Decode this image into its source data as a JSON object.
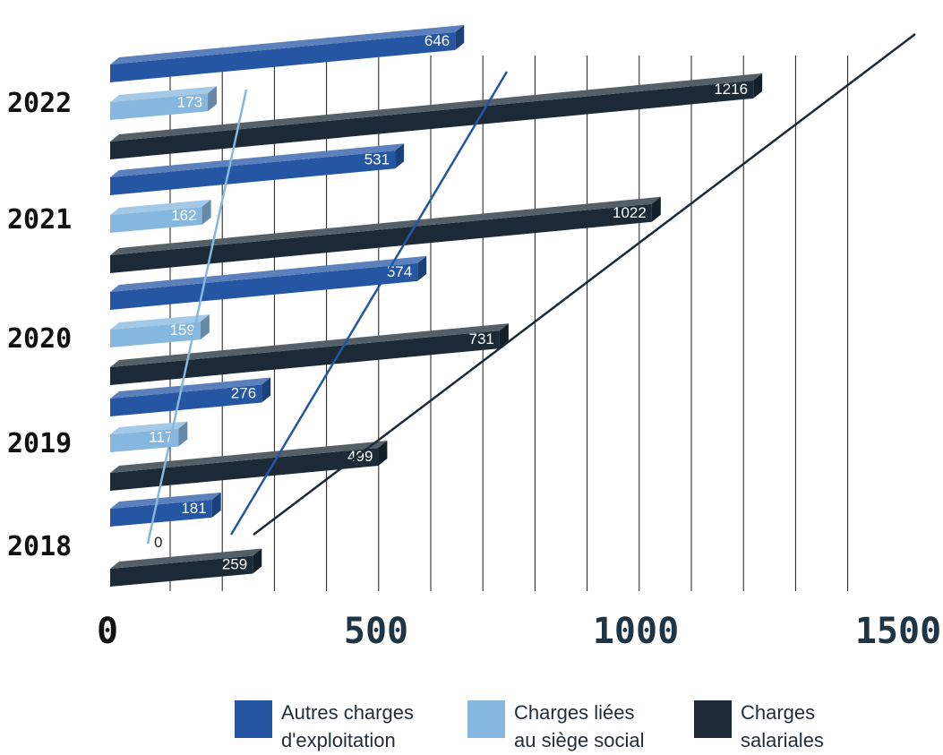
{
  "chart_data": {
    "type": "bar",
    "orientation": "horizontal",
    "style": "3d",
    "categories": [
      "2018",
      "2019",
      "2020",
      "2021",
      "2022"
    ],
    "series": [
      {
        "name": "Autres charges\nd'exploitation",
        "color": "#2456a4",
        "values": [
          181,
          276,
          574,
          531,
          646
        ]
      },
      {
        "name": "Charges liées\nau siège social",
        "color": "#86b7de",
        "values": [
          0,
          117,
          159,
          162,
          173
        ]
      },
      {
        "name": "Charges\nsalariales",
        "color": "#1b2a36",
        "values": [
          259,
          499,
          731,
          1022,
          1216
        ]
      }
    ],
    "x_ticks": [
      "0",
      "500",
      "1000",
      "1500"
    ],
    "xlim": [
      0,
      1500
    ],
    "grid": true,
    "legend_position": "bottom"
  }
}
